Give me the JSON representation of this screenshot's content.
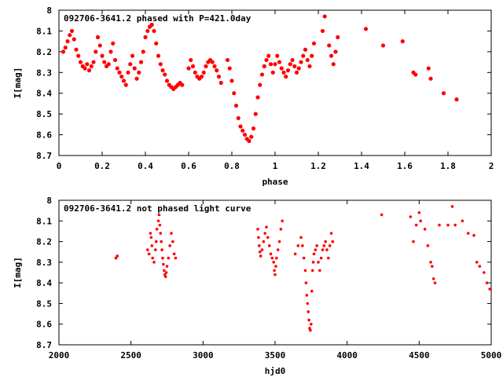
{
  "chart_data": [
    {
      "type": "scatter",
      "title": "092706-3641.2 phased with P=421.0day",
      "xlabel": "phase",
      "ylabel": "I[mag]",
      "xlim": [
        0,
        2
      ],
      "ylim": [
        8.7,
        8.0
      ],
      "y_inverted": true,
      "xticks": [
        "0",
        "0.2",
        "0.4",
        "0.6",
        "0.8",
        "1",
        "1.2",
        "1.4",
        "1.6",
        "1.8",
        "2"
      ],
      "yticks": [
        "8",
        "8.1",
        "8.2",
        "8.3",
        "8.4",
        "8.5",
        "8.6",
        "8.7"
      ],
      "grid": false,
      "marker_color": "#ff0000",
      "series": [
        {
          "points": [
            [
              0.02,
              8.2
            ],
            [
              0.03,
              8.18
            ],
            [
              0.04,
              8.15
            ],
            [
              0.05,
              8.12
            ],
            [
              0.06,
              8.1
            ],
            [
              0.07,
              8.14
            ],
            [
              0.08,
              8.19
            ],
            [
              0.09,
              8.22
            ],
            [
              0.1,
              8.25
            ],
            [
              0.11,
              8.27
            ],
            [
              0.12,
              8.28
            ],
            [
              0.13,
              8.26
            ],
            [
              0.14,
              8.29
            ],
            [
              0.15,
              8.27
            ],
            [
              0.16,
              8.25
            ],
            [
              0.17,
              8.2
            ],
            [
              0.18,
              8.13
            ],
            [
              0.19,
              8.17
            ],
            [
              0.2,
              8.22
            ],
            [
              0.21,
              8.25
            ],
            [
              0.22,
              8.27
            ],
            [
              0.23,
              8.26
            ],
            [
              0.24,
              8.2
            ],
            [
              0.25,
              8.16
            ],
            [
              0.26,
              8.24
            ],
            [
              0.27,
              8.28
            ],
            [
              0.28,
              8.3
            ],
            [
              0.29,
              8.32
            ],
            [
              0.3,
              8.34
            ],
            [
              0.31,
              8.36
            ],
            [
              0.32,
              8.3
            ],
            [
              0.33,
              8.26
            ],
            [
              0.34,
              8.22
            ],
            [
              0.35,
              8.28
            ],
            [
              0.36,
              8.33
            ],
            [
              0.37,
              8.3
            ],
            [
              0.38,
              8.25
            ],
            [
              0.39,
              8.2
            ],
            [
              0.4,
              8.13
            ],
            [
              0.41,
              8.1
            ],
            [
              0.42,
              8.08
            ],
            [
              0.43,
              8.07
            ],
            [
              0.44,
              8.1
            ],
            [
              0.45,
              8.16
            ],
            [
              0.46,
              8.22
            ],
            [
              0.47,
              8.26
            ],
            [
              0.48,
              8.29
            ],
            [
              0.49,
              8.31
            ],
            [
              0.5,
              8.34
            ],
            [
              0.51,
              8.36
            ],
            [
              0.52,
              8.37
            ],
            [
              0.53,
              8.38
            ],
            [
              0.54,
              8.37
            ],
            [
              0.55,
              8.36
            ],
            [
              0.56,
              8.35
            ],
            [
              0.57,
              8.36
            ],
            [
              0.6,
              8.28
            ],
            [
              0.61,
              8.24
            ],
            [
              0.62,
              8.27
            ],
            [
              0.63,
              8.3
            ],
            [
              0.64,
              8.32
            ],
            [
              0.65,
              8.33
            ],
            [
              0.66,
              8.32
            ],
            [
              0.67,
              8.3
            ],
            [
              0.68,
              8.27
            ],
            [
              0.69,
              8.25
            ],
            [
              0.7,
              8.24
            ],
            [
              0.71,
              8.25
            ],
            [
              0.72,
              8.27
            ],
            [
              0.73,
              8.29
            ],
            [
              0.74,
              8.32
            ],
            [
              0.75,
              8.35
            ],
            [
              0.78,
              8.24
            ],
            [
              0.79,
              8.28
            ],
            [
              0.8,
              8.34
            ],
            [
              0.81,
              8.4
            ],
            [
              0.82,
              8.46
            ],
            [
              0.83,
              8.52
            ],
            [
              0.84,
              8.56
            ],
            [
              0.85,
              8.58
            ],
            [
              0.86,
              8.6
            ],
            [
              0.87,
              8.62
            ],
            [
              0.88,
              8.63
            ],
            [
              0.89,
              8.61
            ],
            [
              0.9,
              8.57
            ],
            [
              0.91,
              8.5
            ],
            [
              0.92,
              8.42
            ],
            [
              0.93,
              8.36
            ],
            [
              0.94,
              8.31
            ],
            [
              0.95,
              8.27
            ],
            [
              0.96,
              8.24
            ],
            [
              0.97,
              8.22
            ],
            [
              0.98,
              8.26
            ],
            [
              0.99,
              8.3
            ],
            [
              1.0,
              8.26
            ],
            [
              1.01,
              8.22
            ],
            [
              1.02,
              8.25
            ],
            [
              1.03,
              8.28
            ],
            [
              1.04,
              8.3
            ],
            [
              1.05,
              8.32
            ],
            [
              1.06,
              8.29
            ],
            [
              1.07,
              8.26
            ],
            [
              1.08,
              8.24
            ],
            [
              1.09,
              8.27
            ],
            [
              1.1,
              8.3
            ],
            [
              1.11,
              8.28
            ],
            [
              1.12,
              8.25
            ],
            [
              1.13,
              8.22
            ],
            [
              1.14,
              8.19
            ],
            [
              1.15,
              8.24
            ],
            [
              1.16,
              8.27
            ],
            [
              1.17,
              8.22
            ],
            [
              1.18,
              8.16
            ],
            [
              1.22,
              8.1
            ],
            [
              1.23,
              8.03
            ],
            [
              1.25,
              8.17
            ],
            [
              1.26,
              8.22
            ],
            [
              1.27,
              8.26
            ],
            [
              1.28,
              8.2
            ],
            [
              1.29,
              8.13
            ],
            [
              1.42,
              8.09
            ],
            [
              1.5,
              8.17
            ],
            [
              1.59,
              8.15
            ],
            [
              1.64,
              8.3
            ],
            [
              1.65,
              8.31
            ],
            [
              1.71,
              8.28
            ],
            [
              1.72,
              8.33
            ],
            [
              1.78,
              8.4
            ],
            [
              1.84,
              8.43
            ]
          ]
        }
      ]
    },
    {
      "type": "scatter",
      "title": "092706-3641.2 not phased light curve",
      "xlabel": "hjd0",
      "ylabel": "I[mag]",
      "xlim": [
        2000,
        5000
      ],
      "ylim": [
        8.7,
        8.0
      ],
      "y_inverted": true,
      "xticks": [
        "2000",
        "2500",
        "3000",
        "3500",
        "4000",
        "4500",
        "5000"
      ],
      "yticks": [
        "8",
        "8.1",
        "8.2",
        "8.3",
        "8.4",
        "8.5",
        "8.6",
        "8.7"
      ],
      "grid": false,
      "marker_color": "#ff0000",
      "series": [
        {
          "points": [
            [
              2395,
              8.28
            ],
            [
              2405,
              8.27
            ],
            [
              2615,
              8.24
            ],
            [
              2625,
              8.26
            ],
            [
              2635,
              8.16
            ],
            [
              2640,
              8.18
            ],
            [
              2645,
              8.22
            ],
            [
              2650,
              8.28
            ],
            [
              2660,
              8.3
            ],
            [
              2670,
              8.24
            ],
            [
              2675,
              8.2
            ],
            [
              2680,
              8.14
            ],
            [
              2690,
              8.1
            ],
            [
              2695,
              8.07
            ],
            [
              2700,
              8.12
            ],
            [
              2705,
              8.16
            ],
            [
              2710,
              8.2
            ],
            [
              2715,
              8.24
            ],
            [
              2720,
              8.28
            ],
            [
              2725,
              8.31
            ],
            [
              2730,
              8.34
            ],
            [
              2735,
              8.36
            ],
            [
              2740,
              8.37
            ],
            [
              2745,
              8.35
            ],
            [
              2750,
              8.32
            ],
            [
              2760,
              8.28
            ],
            [
              2770,
              8.22
            ],
            [
              2780,
              8.16
            ],
            [
              2790,
              8.2
            ],
            [
              2800,
              8.26
            ],
            [
              2810,
              8.28
            ],
            [
              3380,
              8.14
            ],
            [
              3385,
              8.18
            ],
            [
              3390,
              8.22
            ],
            [
              3395,
              8.25
            ],
            [
              3400,
              8.27
            ],
            [
              3410,
              8.24
            ],
            [
              3420,
              8.2
            ],
            [
              3430,
              8.16
            ],
            [
              3440,
              8.13
            ],
            [
              3450,
              8.18
            ],
            [
              3460,
              8.22
            ],
            [
              3470,
              8.26
            ],
            [
              3480,
              8.28
            ],
            [
              3490,
              8.3
            ],
            [
              3495,
              8.34
            ],
            [
              3500,
              8.36
            ],
            [
              3505,
              8.32
            ],
            [
              3510,
              8.28
            ],
            [
              3520,
              8.24
            ],
            [
              3530,
              8.2
            ],
            [
              3540,
              8.14
            ],
            [
              3550,
              8.1
            ],
            [
              3640,
              8.26
            ],
            [
              3660,
              8.22
            ],
            [
              3680,
              8.18
            ],
            [
              3690,
              8.22
            ],
            [
              3700,
              8.28
            ],
            [
              3710,
              8.34
            ],
            [
              3715,
              8.4
            ],
            [
              3720,
              8.46
            ],
            [
              3725,
              8.5
            ],
            [
              3730,
              8.54
            ],
            [
              3735,
              8.58
            ],
            [
              3740,
              8.62
            ],
            [
              3745,
              8.63
            ],
            [
              3750,
              8.6
            ],
            [
              3755,
              8.44
            ],
            [
              3760,
              8.34
            ],
            [
              3765,
              8.3
            ],
            [
              3770,
              8.26
            ],
            [
              3780,
              8.24
            ],
            [
              3790,
              8.22
            ],
            [
              3800,
              8.3
            ],
            [
              3810,
              8.34
            ],
            [
              3820,
              8.28
            ],
            [
              3830,
              8.24
            ],
            [
              3840,
              8.22
            ],
            [
              3850,
              8.2
            ],
            [
              3860,
              8.24
            ],
            [
              3870,
              8.28
            ],
            [
              3880,
              8.22
            ],
            [
              3890,
              8.16
            ],
            [
              3900,
              8.2
            ],
            [
              4240,
              8.07
            ],
            [
              4440,
              8.08
            ],
            [
              4460,
              8.2
            ],
            [
              4480,
              8.12
            ],
            [
              4500,
              8.06
            ],
            [
              4510,
              8.1
            ],
            [
              4540,
              8.14
            ],
            [
              4560,
              8.22
            ],
            [
              4580,
              8.3
            ],
            [
              4590,
              8.32
            ],
            [
              4600,
              8.38
            ],
            [
              4610,
              8.4
            ],
            [
              4640,
              8.12
            ],
            [
              4700,
              8.12
            ],
            [
              4730,
              8.03
            ],
            [
              4750,
              8.12
            ],
            [
              4800,
              8.1
            ],
            [
              4840,
              8.16
            ],
            [
              4880,
              8.17
            ],
            [
              4900,
              8.3
            ],
            [
              4920,
              8.32
            ],
            [
              4950,
              8.35
            ],
            [
              4970,
              8.4
            ],
            [
              4990,
              8.43
            ]
          ]
        }
      ]
    }
  ]
}
